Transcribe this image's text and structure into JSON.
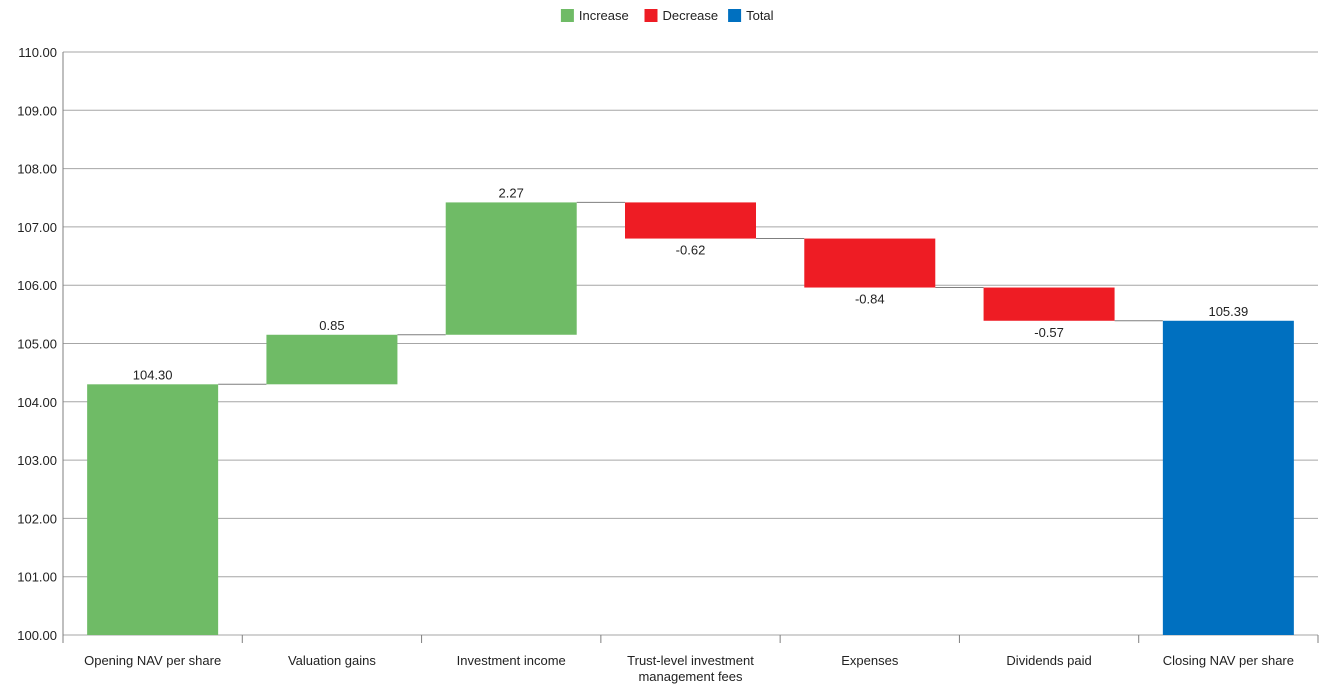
{
  "chart_data": {
    "type": "bar",
    "subtype": "waterfall",
    "title": "",
    "xlabel": "",
    "ylabel": "",
    "ylim": [
      100,
      110
    ],
    "yticks": [
      "100.00",
      "101.00",
      "102.00",
      "103.00",
      "104.00",
      "105.00",
      "106.00",
      "107.00",
      "108.00",
      "109.00",
      "110.00"
    ],
    "grid": true,
    "legend_position": "top-center",
    "legend": [
      {
        "label": "Increase",
        "color": "#6fbb66"
      },
      {
        "label": "Decrease",
        "color": "#ee1c24"
      },
      {
        "label": "Total",
        "color": "#0070c0"
      }
    ],
    "categories": [
      [
        "Opening NAV per share"
      ],
      [
        "Valuation gains"
      ],
      [
        "Investment income"
      ],
      [
        "Trust-level investment",
        "management fees"
      ],
      [
        "Expenses"
      ],
      [
        "Dividends paid"
      ],
      [
        "Closing NAV per share"
      ]
    ],
    "steps": [
      {
        "kind": "start",
        "value": 104.3,
        "label": "104.30",
        "color": "#6fbb66"
      },
      {
        "kind": "delta",
        "value": 0.85,
        "label": "0.85",
        "color": "#6fbb66"
      },
      {
        "kind": "delta",
        "value": 2.27,
        "label": "2.27",
        "color": "#6fbb66"
      },
      {
        "kind": "delta",
        "value": -0.62,
        "label": "-0.62",
        "color": "#ee1c24"
      },
      {
        "kind": "delta",
        "value": -0.84,
        "label": "-0.84",
        "color": "#ee1c24"
      },
      {
        "kind": "delta",
        "value": -0.57,
        "label": "-0.57",
        "color": "#ee1c24"
      },
      {
        "kind": "total",
        "value": 105.39,
        "label": "105.39",
        "color": "#0070c0"
      }
    ]
  }
}
